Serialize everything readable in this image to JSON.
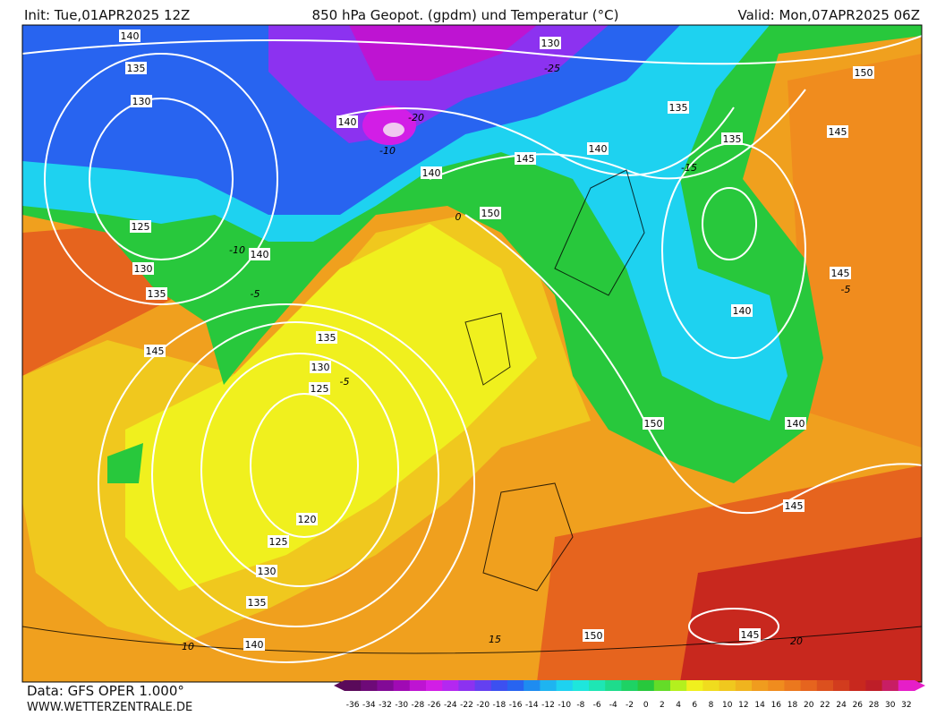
{
  "header": {
    "init": "Init: Tue,01APR2025 12Z",
    "title": "850 hPa Geopot. (gpdm) und Temperatur (°C)",
    "valid": "Valid: Mon,07APR2025 06Z"
  },
  "footer": {
    "data": "Data: GFS OPER 1.000°",
    "site": "WWW.WETTERZENTRALE.DE"
  },
  "geopotential_labels": [
    140,
    135,
    130,
    125,
    130,
    135,
    145,
    140,
    140,
    140,
    145,
    140,
    150,
    130,
    135,
    135,
    150,
    145,
    145,
    140,
    150,
    140,
    145,
    135,
    130,
    125,
    120,
    125,
    130,
    135,
    140,
    150,
    145
  ],
  "temperature_labels": [
    -25,
    -20,
    -10,
    -10,
    -5,
    0,
    -15,
    -5,
    -5,
    10,
    15,
    20
  ],
  "colorbar": {
    "ticks": [
      -36,
      -34,
      -32,
      -30,
      -28,
      -26,
      -24,
      -22,
      -20,
      -18,
      -16,
      -14,
      -12,
      -10,
      -8,
      -6,
      -4,
      -2,
      0,
      2,
      4,
      6,
      8,
      10,
      12,
      14,
      16,
      18,
      20,
      22,
      24,
      26,
      28,
      30,
      32
    ],
    "colors": [
      "#5a0a5a",
      "#6e0a78",
      "#820a96",
      "#a00ab4",
      "#be14d2",
      "#d21ee6",
      "#b428f0",
      "#8c32f0",
      "#6440f0",
      "#3c50f0",
      "#2864f0",
      "#1e8cf0",
      "#1eb4f0",
      "#1ed2f0",
      "#1ee6dc",
      "#1ee6b4",
      "#1edc8c",
      "#1ed264",
      "#28c83c",
      "#64dc28",
      "#b4f01e",
      "#f0f01e",
      "#f0dc1e",
      "#f0c81e",
      "#f0b41e",
      "#f09c1e",
      "#f08c1e",
      "#eb781e",
      "#e6641e",
      "#dc501e",
      "#d23c1e",
      "#c8281e",
      "#be1e28",
      "#c81e64",
      "#e61ec8"
    ]
  }
}
